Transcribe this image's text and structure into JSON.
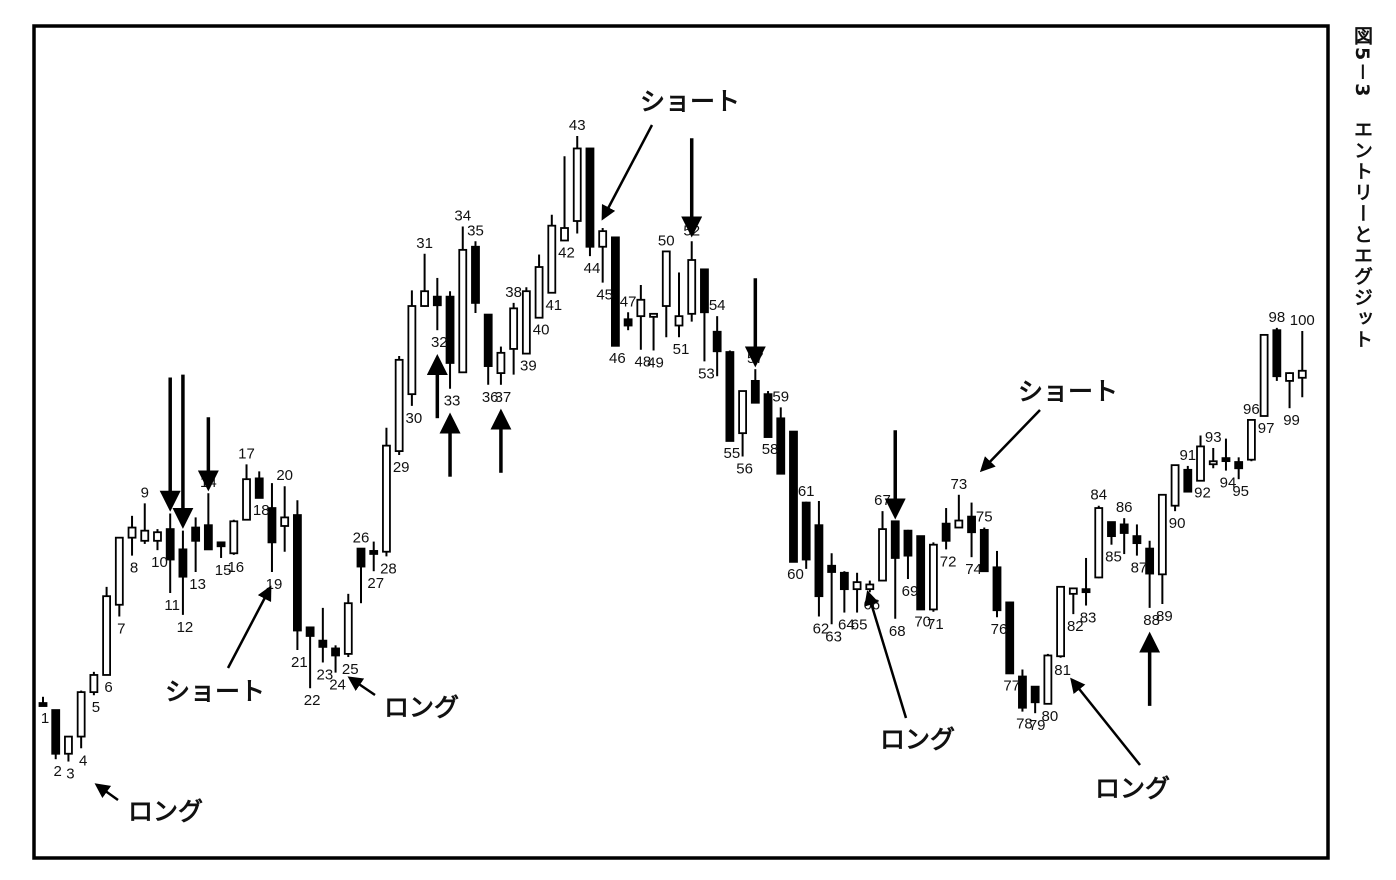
{
  "chart_data": {
    "type": "candlestick",
    "title": "図5－3　エントリーとエグジット",
    "xlabel": "",
    "ylabel": "",
    "grid": false,
    "ylim": [
      0,
      100
    ],
    "bar_numbers": [
      1,
      2,
      3,
      4,
      5,
      6,
      7,
      8,
      9,
      10,
      11,
      12,
      13,
      14,
      15,
      16,
      17,
      18,
      19,
      20,
      21,
      22,
      23,
      24,
      25,
      26,
      27,
      28,
      29,
      30,
      31,
      32,
      33,
      34,
      35,
      36,
      37,
      38,
      39,
      40,
      41,
      42,
      43,
      44,
      45,
      46,
      47,
      48,
      49,
      50,
      51,
      52,
      53,
      54,
      55,
      56,
      57,
      58,
      59,
      60,
      61,
      62,
      63,
      64,
      65,
      66,
      67,
      68,
      69,
      70,
      71,
      72,
      73,
      74,
      75,
      76,
      77,
      78,
      79,
      80,
      81,
      82,
      83,
      84,
      85,
      86,
      87,
      88,
      89,
      90,
      91,
      92,
      93,
      94,
      95,
      96,
      97,
      98,
      99,
      100
    ],
    "candles": [
      [
        19.0,
        17.8,
        18.2,
        17.9
      ],
      [
        17.3,
        11.0,
        17.3,
        11.7
      ],
      [
        13.9,
        10.7,
        11.7,
        13.9
      ],
      [
        19.8,
        12.4,
        13.9,
        19.6
      ],
      [
        22.2,
        19.2,
        19.6,
        21.8
      ],
      [
        33.1,
        21.8,
        21.8,
        31.9
      ],
      [
        34.9,
        29.3,
        30.8,
        39.4
      ],
      [
        42.2,
        37.1,
        39.4,
        40.7
      ],
      [
        43.8,
        38.6,
        39.0,
        40.3
      ],
      [
        40.5,
        37.8,
        39.0,
        40.1
      ],
      [
        42.5,
        32.3,
        40.5,
        36.6
      ],
      [
        40.3,
        29.5,
        37.9,
        34.4
      ],
      [
        42.0,
        35.0,
        40.7,
        39.0
      ],
      [
        45.1,
        38.6,
        41.0,
        37.9
      ],
      [
        38.8,
        36.8,
        38.8,
        38.3
      ],
      [
        41.7,
        37.2,
        37.4,
        41.5
      ],
      [
        48.8,
        41.7,
        41.7,
        46.9
      ],
      [
        47.9,
        44.7,
        47.0,
        44.5
      ],
      [
        46.4,
        35.0,
        43.2,
        38.8
      ],
      [
        46.0,
        37.6,
        40.9,
        42.0
      ],
      [
        44.2,
        25.0,
        42.3,
        27.5
      ],
      [
        27.9,
        20.1,
        27.9,
        26.8
      ],
      [
        30.4,
        23.4,
        26.2,
        25.4
      ],
      [
        25.6,
        22.1,
        25.2,
        24.3
      ],
      [
        32.2,
        24.1,
        24.5,
        31.0
      ],
      [
        38.0,
        31.0,
        38.0,
        35.7
      ],
      [
        38.9,
        35.1,
        37.7,
        37.4
      ],
      [
        53.5,
        37.0,
        37.6,
        51.2
      ],
      [
        62.7,
        50.0,
        50.5,
        62.2
      ],
      [
        71.1,
        56.3,
        57.8,
        69.1
      ],
      [
        75.8,
        69.0,
        69.1,
        71.0
      ],
      [
        72.7,
        66.0,
        70.3,
        69.2
      ],
      [
        71.0,
        58.5,
        70.3,
        61.8
      ],
      [
        79.3,
        60.6,
        60.6,
        76.3
      ],
      [
        77.4,
        68.2,
        76.7,
        69.5
      ],
      [
        67.3,
        59.0,
        68.0,
        61.4
      ],
      [
        63.9,
        59.0,
        60.5,
        63.1
      ],
      [
        69.5,
        60.3,
        63.6,
        68.8
      ],
      [
        71.5,
        63.0,
        63.0,
        71.0
      ],
      [
        75.7,
        67.6,
        67.6,
        74.1
      ],
      [
        80.8,
        70.8,
        70.8,
        79.4
      ],
      [
        88.3,
        77.5,
        77.5,
        79.1
      ],
      [
        90.9,
        78.4,
        80.0,
        89.3
      ],
      [
        89.2,
        75.5,
        89.3,
        76.7
      ],
      [
        79.1,
        72.1,
        76.7,
        78.7
      ],
      [
        74.0,
        65.4,
        77.9,
        64.0
      ],
      [
        68.3,
        66.0,
        67.4,
        66.6
      ],
      [
        71.8,
        63.5,
        67.8,
        69.9
      ],
      [
        67.6,
        63.4,
        68.0,
        68.1
      ],
      [
        73.3,
        65.1,
        69.1,
        76.1
      ],
      [
        73.4,
        65.1,
        66.6,
        67.8
      ],
      [
        77.4,
        67.1,
        68.1,
        75.0
      ],
      [
        72.3,
        62.0,
        73.8,
        68.3
      ],
      [
        67.8,
        60.1,
        65.8,
        63.3
      ],
      [
        63.4,
        57.9,
        63.2,
        51.8
      ],
      [
        54.9,
        49.8,
        52.8,
        58.2
      ],
      [
        61.0,
        57.5,
        59.5,
        56.7
      ],
      [
        58.2,
        56.0,
        57.8,
        52.3
      ],
      [
        56.1,
        51.0,
        54.7,
        47.6
      ],
      [
        52.6,
        36.6,
        53.0,
        36.3
      ],
      [
        44.0,
        35.4,
        43.9,
        36.6
      ],
      [
        44.1,
        29.3,
        41.0,
        31.9
      ],
      [
        37.4,
        28.3,
        35.8,
        35.0
      ],
      [
        35.1,
        29.8,
        34.9,
        32.8
      ],
      [
        34.9,
        29.8,
        32.8,
        33.7
      ],
      [
        33.9,
        32.4,
        32.8,
        33.4
      ],
      [
        42.8,
        33.9,
        33.9,
        40.5
      ],
      [
        41.5,
        29.0,
        41.5,
        36.8
      ],
      [
        40.4,
        34.1,
        40.3,
        37.1
      ],
      [
        39.2,
        30.6,
        39.6,
        30.2
      ],
      [
        38.8,
        29.9,
        30.2,
        38.5
      ],
      [
        43.2,
        37.9,
        41.2,
        39.0
      ],
      [
        44.9,
        41.1,
        40.7,
        41.6
      ],
      [
        43.9,
        36.9,
        42.1,
        40.1
      ],
      [
        40.7,
        35.6,
        40.4,
        35.1
      ],
      [
        37.7,
        29.2,
        35.6,
        30.1
      ],
      [
        31.2,
        27.2,
        31.1,
        22.0
      ],
      [
        22.5,
        17.1,
        21.6,
        17.6
      ],
      [
        19.8,
        16.9,
        20.3,
        18.3
      ],
      [
        24.5,
        18.6,
        18.1,
        24.3
      ],
      [
        33.1,
        24.0,
        24.2,
        33.1
      ],
      [
        32.2,
        29.6,
        32.2,
        32.9
      ],
      [
        36.8,
        30.7,
        32.8,
        32.6
      ],
      [
        43.5,
        34.2,
        34.3,
        43.2
      ],
      [
        41.4,
        38.5,
        41.4,
        39.6
      ],
      [
        41.9,
        37.3,
        41.1,
        40.0
      ],
      [
        41.1,
        37.1,
        39.6,
        38.7
      ],
      [
        39.0,
        30.4,
        38.0,
        34.8
      ],
      [
        44.7,
        30.9,
        34.7,
        44.9
      ],
      [
        48.0,
        42.8,
        43.5,
        48.7
      ],
      [
        48.6,
        45.9,
        48.1,
        45.3
      ],
      [
        52.5,
        46.7,
        46.7,
        51.1
      ],
      [
        50.9,
        48.3,
        48.9,
        49.2
      ],
      [
        52.1,
        48.0,
        49.6,
        49.4
      ],
      [
        49.7,
        46.9,
        49.1,
        48.3
      ],
      [
        54.0,
        49.2,
        49.4,
        54.5
      ],
      [
        65.0,
        55.4,
        55.0,
        65.4
      ],
      [
        66.3,
        59.5,
        66.0,
        60.1
      ],
      [
        60.6,
        56.0,
        59.5,
        60.5
      ],
      [
        65.9,
        57.4,
        59.9,
        60.8
      ]
    ],
    "annotations": [
      "ロング",
      "ショート",
      "ロング",
      "ショート",
      "ショート",
      "ロング",
      "ロング",
      "ロング"
    ]
  },
  "figure_title": "図5－3　エントリーとエグジット"
}
